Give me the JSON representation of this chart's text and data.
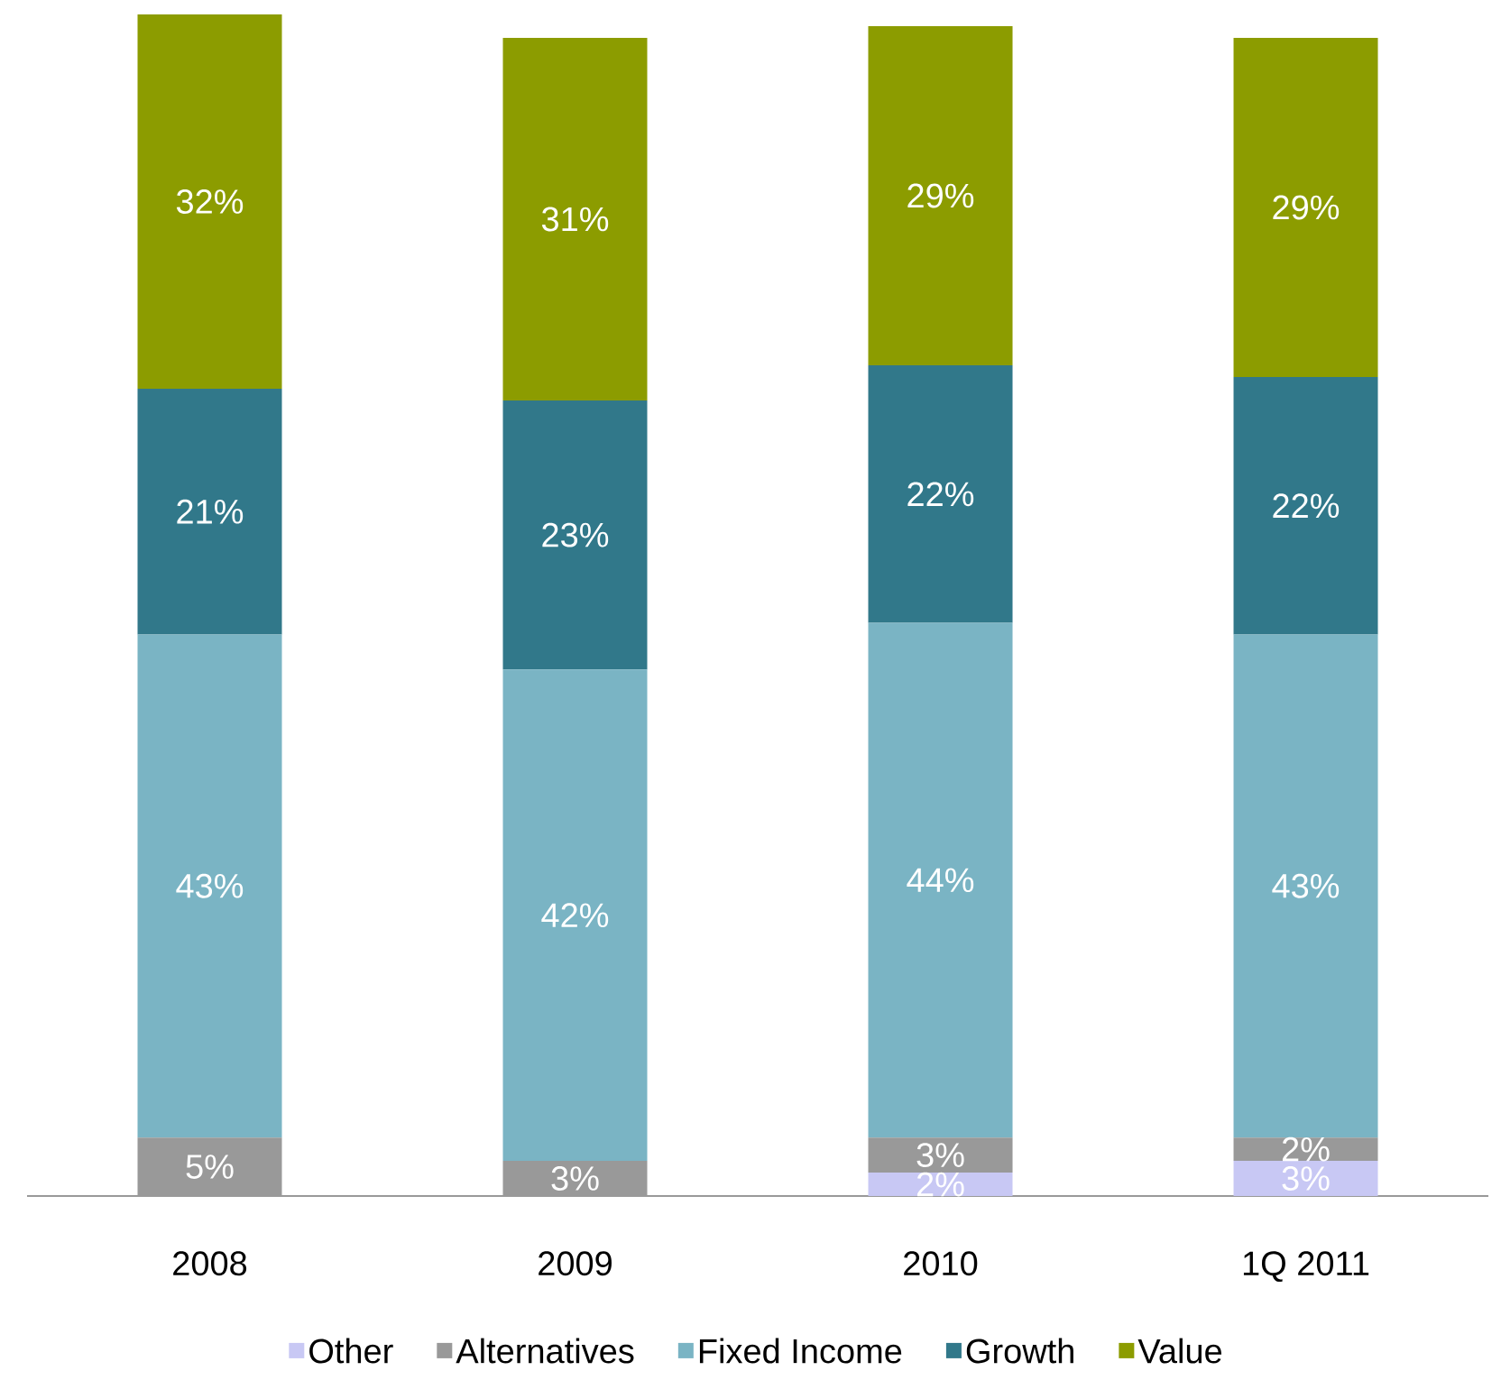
{
  "chart_data": {
    "type": "bar",
    "stacked": true,
    "categories": [
      "2008",
      "2009",
      "2010",
      "1Q 2011"
    ],
    "legend": "bottom",
    "series": [
      {
        "name": "Other",
        "color": "#c8c8f4",
        "values": [
          0,
          0,
          2,
          3
        ],
        "value_labels": [
          null,
          null,
          "2%",
          "3%"
        ]
      },
      {
        "name": "Alternatives",
        "color": "#999999",
        "values": [
          5,
          3,
          3,
          2
        ],
        "value_labels": [
          "5%",
          "3%",
          "3%",
          "2%"
        ]
      },
      {
        "name": "Fixed Income",
        "color": "#7ab4c4",
        "values": [
          43,
          42,
          44,
          43
        ],
        "value_labels": [
          "43%",
          "42%",
          "44%",
          "43%"
        ]
      },
      {
        "name": "Growth",
        "color": "#31788a",
        "values": [
          21,
          23,
          22,
          22
        ],
        "value_labels": [
          "21%",
          "23%",
          "22%",
          "22%"
        ]
      },
      {
        "name": "Value",
        "color": "#8c9c00",
        "values": [
          32,
          31,
          29,
          29
        ],
        "value_labels": [
          "32%",
          "31%",
          "29%",
          "29%"
        ]
      }
    ]
  }
}
